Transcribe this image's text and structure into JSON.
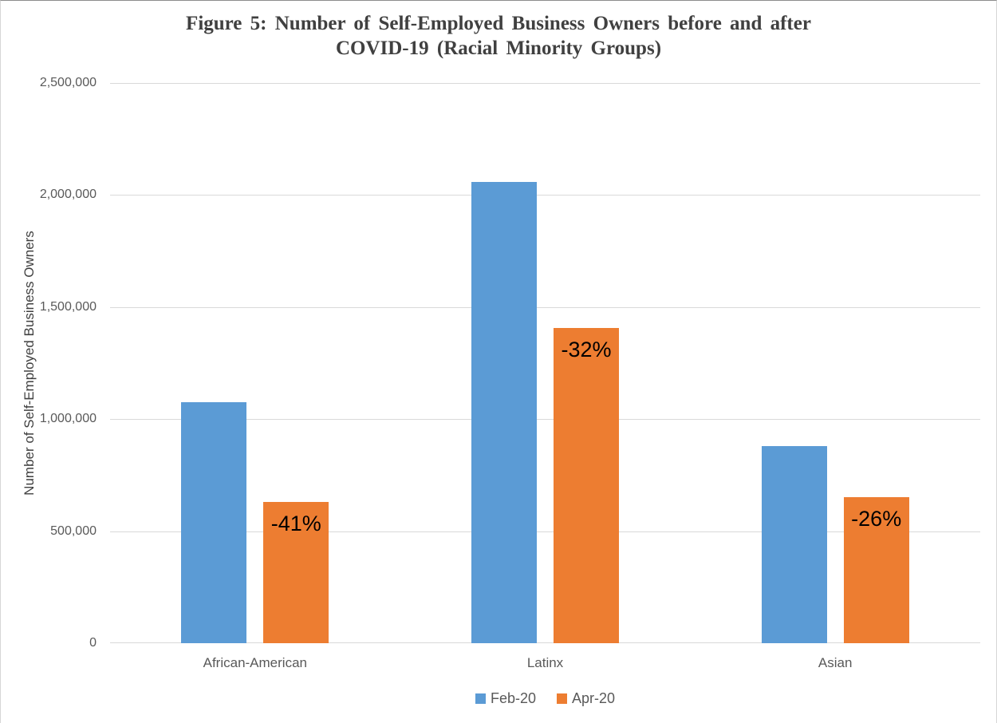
{
  "page": {
    "title_line1": "Figure 5: Number of Self-Employed Business Owners before and after",
    "title_line2": "COVID-19 (Racial Minority Groups)"
  },
  "chart_data": {
    "type": "bar",
    "title": "Figure 5: Number of Self-Employed Business Owners before and after COVID-19 (Racial Minority Groups)",
    "categories": [
      "African-American",
      "Latinx",
      "Asian"
    ],
    "series": [
      {
        "name": "Feb-20",
        "color": "#5B9BD5",
        "values": [
          1075000,
          2060000,
          880000
        ]
      },
      {
        "name": "Apr-20",
        "color": "#ED7D31",
        "values": [
          630000,
          1405000,
          650000
        ],
        "bar_labels": [
          "-41%",
          "-32%",
          "-26%"
        ]
      }
    ],
    "xlabel": "",
    "ylabel": "Number of Self-Employed Business Owners",
    "ylim": [
      0,
      2500000
    ],
    "yticks": [
      0,
      500000,
      1000000,
      1500000,
      2000000,
      2500000
    ],
    "ytick_labels": [
      "0",
      "500,000",
      "1,000,000",
      "1,500,000",
      "2,000,000",
      "2,500,000"
    ],
    "grid": true,
    "legend_position": "bottom"
  },
  "style": {
    "accent_blue": "#5B9BD5",
    "accent_orange": "#ED7D31",
    "grid_color": "#D9D9D9",
    "axis_text_color": "#595959",
    "title_color": "#404040",
    "bar_label_color": "#000000"
  }
}
